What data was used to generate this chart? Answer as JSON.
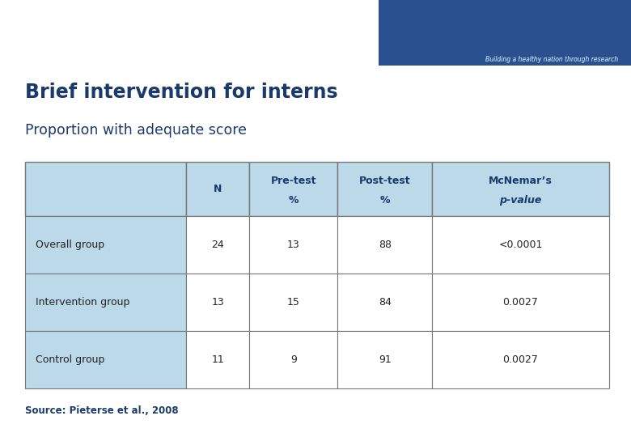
{
  "title_bold": "Brief intervention for interns",
  "title_sub": "Proportion with adequate score",
  "header_row": [
    "",
    "N",
    "Pre-test\n%",
    "Post-test\n%",
    "McNemar’s\np-value"
  ],
  "rows": [
    [
      "Overall group",
      "24",
      "13",
      "88",
      "<0.0001"
    ],
    [
      "Intervention group",
      "13",
      "15",
      "84",
      "0.0027"
    ],
    [
      "Control group",
      "11",
      "9",
      "91",
      "0.0027"
    ]
  ],
  "source": "Source: Pieterse et al., 2008",
  "header_bg": "#bcd9ea",
  "row_bg": "#ffffff",
  "first_col_bg": "#bcd9ea",
  "border_color": "#777777",
  "title_color": "#1a3a6b",
  "header_bar_color": "#1f3a7a",
  "text_color": "#222222",
  "source_color": "#1a3a6b",
  "fig_bg": "#ffffff"
}
